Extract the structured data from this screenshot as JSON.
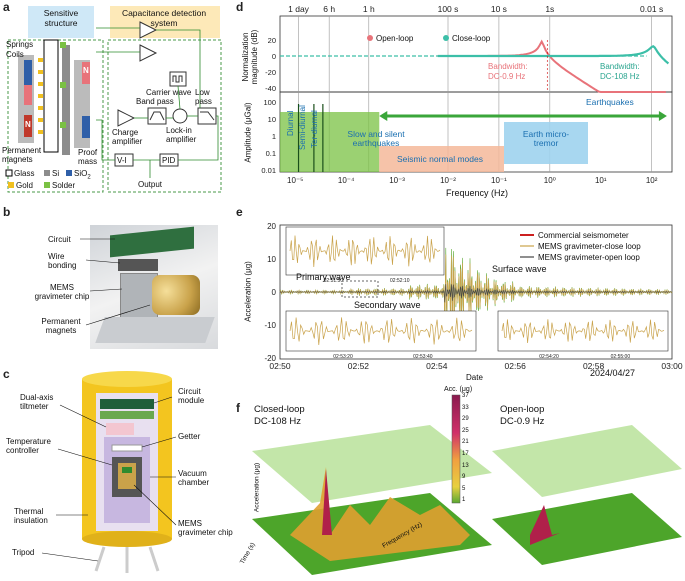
{
  "panel_labels": {
    "a": "a",
    "b": "b",
    "c": "c",
    "d": "d",
    "e": "e",
    "f": "f"
  },
  "panel_a": {
    "sensitive_structure": "Sensitive structure",
    "cap_detection": "Capacitance detection system",
    "springs": "Springs",
    "coils": "Coils",
    "permanent_magnets": "Permanent magnets",
    "proof_mass": "Proof mass",
    "carrier_wave": "Carrier wave",
    "band_pass": "Band pass",
    "low_pass": "Low pass",
    "charge_amplifier": "Charge amplifier",
    "lockin_amplifier": "Lock-in amplifier",
    "vi": "V-I",
    "pid": "PID",
    "output": "Output",
    "n_left": "N",
    "n_right": "N",
    "legend": {
      "glass": "Glass",
      "si": "Si",
      "sio2": "SiO",
      "sio2_sub": "2",
      "gold": "Gold",
      "solder": "Solder"
    },
    "colors": {
      "glass": "#ffffff",
      "si": "#8c8c8c",
      "sio2": "#2f5fa8",
      "gold": "#f0c020",
      "solder": "#7ac143"
    }
  },
  "panel_b": {
    "circuit": "Circuit",
    "wire_bonding": "Wire bonding",
    "mems_chip": "MEMS gravimeter chip",
    "permanent_magnets": "Permanent magnets"
  },
  "panel_c": {
    "dual_axis": "Dual-axis tiltmeter",
    "temp_controller": "Temperature controller",
    "thermal_insulation": "Thermal insulation",
    "tripod": "Tripod",
    "circuit_module": "Circuit module",
    "getter": "Getter",
    "vacuum_chamber": "Vacuum chamber",
    "mems_chip": "MEMS gravimeter chip"
  },
  "panel_d": {
    "top_ticks": [
      "1 day",
      "6 h",
      "1 h",
      "100 s",
      "10 s",
      "1s",
      "0.01 s"
    ],
    "top_ylabel": "Normalization magnitude (dB)",
    "top_yticks": [
      "20",
      "0",
      "-20",
      "-40"
    ],
    "legend_open": "Open-loop",
    "legend_close": "Close-loop",
    "bw_open_title": "Bandwidth:",
    "bw_open_value": "DC-0.9 Hz",
    "bw_close_title": "Bandwidth:",
    "bw_close_value": "DC-108 Hz",
    "bottom_ylabel": "Amplitude (μGal)",
    "bottom_yticks": [
      "100",
      "10",
      "1",
      "0.1",
      "0.01"
    ],
    "xlabel": "Frequency (Hz)",
    "xticks": [
      "10⁻⁵",
      "10⁻⁴",
      "10⁻³",
      "10⁻²",
      "10⁻¹",
      "10⁰",
      "10¹",
      "10²"
    ],
    "diurnal": "Diurnal",
    "semi_diurnal": "Semi-diurnal",
    "ter_diurnal": "Ter-diurnal",
    "slow_eq": "Slow and silent earthquakes",
    "seismic_modes": "Seismic normal modes",
    "earthquakes": "Earthquakes",
    "earth_tremor": "Earth micro-tremor",
    "colors": {
      "open": "#e8737a",
      "close": "#3cbfa8",
      "band_green": "#7ac143",
      "band_salmon": "#f4b89a",
      "band_blue": "#9fd3ee",
      "arrow": "#3aa63a"
    }
  },
  "panel_e": {
    "ylabel": "Acceleration (μg)",
    "yticks": [
      "20",
      "10",
      "0",
      "-10",
      "-20"
    ],
    "xlabel": "Date",
    "xticks": [
      "02:50",
      "02:52",
      "02:54",
      "02:56",
      "02:58",
      "03:00"
    ],
    "date": "2024/04/27",
    "legend": [
      "Commercial seismometer",
      "MEMS gravimeter-close loop",
      "MEMS gravimeter-open loop"
    ],
    "primary_wave": "Primary wave",
    "secondary_wave": "Secondary wave",
    "surface_wave": "Surface wave",
    "inset1_ticks": [
      "02:51:50",
      "02:52:10"
    ],
    "inset2_ticks": [
      "02:53:20",
      "02:53:40"
    ],
    "inset3_ticks": [
      "02:54:20",
      "02:55:00"
    ],
    "colors": {
      "commercial": "#cc2020",
      "close": "#c9a24a",
      "open": "#444444",
      "green": "#5aa832"
    }
  },
  "panel_f": {
    "closed_title": "Closed-loop",
    "closed_sub": "DC-108 Hz",
    "open_title": "Open-loop",
    "open_sub": "DC-0.9 Hz",
    "colorbar_title": "Acc. (μg)",
    "colorbar_ticks": [
      "37",
      "33",
      "29",
      "25",
      "21",
      "17",
      "13",
      "9",
      "5",
      "1"
    ],
    "z_label": "Acceleration (μg)",
    "time_label": "Time (s)",
    "freq_label": "Frequency (Hz)"
  }
}
